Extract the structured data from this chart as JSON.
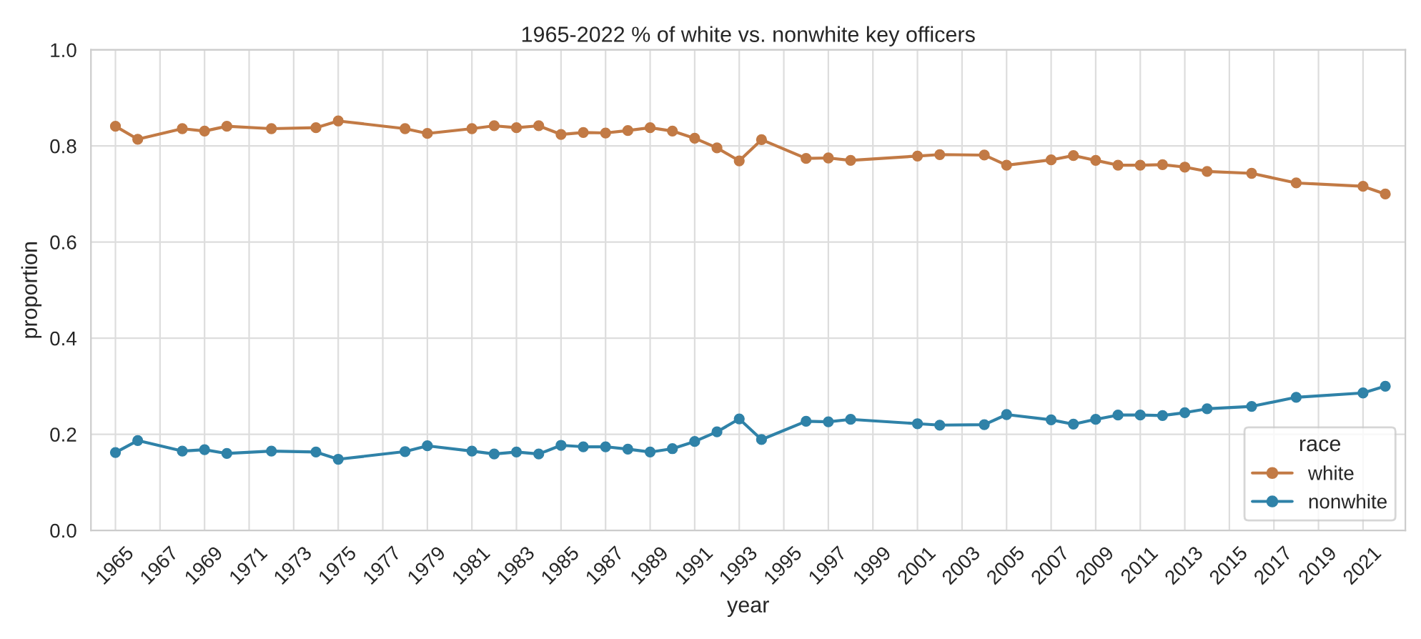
{
  "chart_data": {
    "type": "line",
    "title": "1965-2022 % of white vs. nonwhite key officers",
    "xlabel": "year",
    "ylabel": "proportion",
    "legend_title": "race",
    "x": [
      1965,
      1966,
      1968,
      1969,
      1970,
      1972,
      1974,
      1975,
      1978,
      1979,
      1981,
      1982,
      1983,
      1984,
      1985,
      1986,
      1987,
      1988,
      1989,
      1990,
      1991,
      1992,
      1993,
      1994,
      1996,
      1997,
      1998,
      2001,
      2002,
      2004,
      2005,
      2007,
      2008,
      2009,
      2010,
      2011,
      2012,
      2013,
      2014,
      2016,
      2018,
      2021,
      2022
    ],
    "series": [
      {
        "name": "white",
        "color": "#c27a45",
        "values": [
          0.841,
          0.814,
          0.836,
          0.831,
          0.841,
          0.836,
          0.838,
          0.852,
          0.836,
          0.826,
          0.836,
          0.842,
          0.838,
          0.842,
          0.824,
          0.828,
          0.827,
          0.832,
          0.838,
          0.831,
          0.816,
          0.796,
          0.769,
          0.813,
          0.774,
          0.775,
          0.77,
          0.779,
          0.782,
          0.781,
          0.76,
          0.771,
          0.78,
          0.77,
          0.76,
          0.76,
          0.761,
          0.756,
          0.747,
          0.743,
          0.723,
          0.716,
          0.7
        ]
      },
      {
        "name": "nonwhite",
        "color": "#2f82a8",
        "values": [
          0.162,
          0.187,
          0.165,
          0.168,
          0.16,
          0.165,
          0.163,
          0.148,
          0.164,
          0.176,
          0.165,
          0.159,
          0.163,
          0.159,
          0.177,
          0.174,
          0.174,
          0.169,
          0.163,
          0.17,
          0.185,
          0.205,
          0.232,
          0.189,
          0.227,
          0.226,
          0.231,
          0.222,
          0.219,
          0.22,
          0.241,
          0.23,
          0.221,
          0.231,
          0.24,
          0.24,
          0.239,
          0.245,
          0.253,
          0.258,
          0.277,
          0.286,
          0.3
        ]
      }
    ],
    "xlim": [
      1963.9,
      2022.9
    ],
    "xticks": [
      1965,
      1967,
      1969,
      1971,
      1973,
      1975,
      1977,
      1979,
      1981,
      1983,
      1985,
      1987,
      1989,
      1991,
      1993,
      1995,
      1997,
      1999,
      2001,
      2003,
      2005,
      2007,
      2009,
      2011,
      2013,
      2015,
      2017,
      2019,
      2021
    ],
    "ylim": [
      0,
      1
    ],
    "yticks": [
      {
        "value": 0,
        "label": "0.0"
      },
      0.2,
      0.4,
      0.6,
      0.8,
      {
        "value": 1,
        "label": "1.0"
      }
    ],
    "grid": true,
    "legend": "bottom right",
    "marker": "circle",
    "line_style": "solid"
  }
}
